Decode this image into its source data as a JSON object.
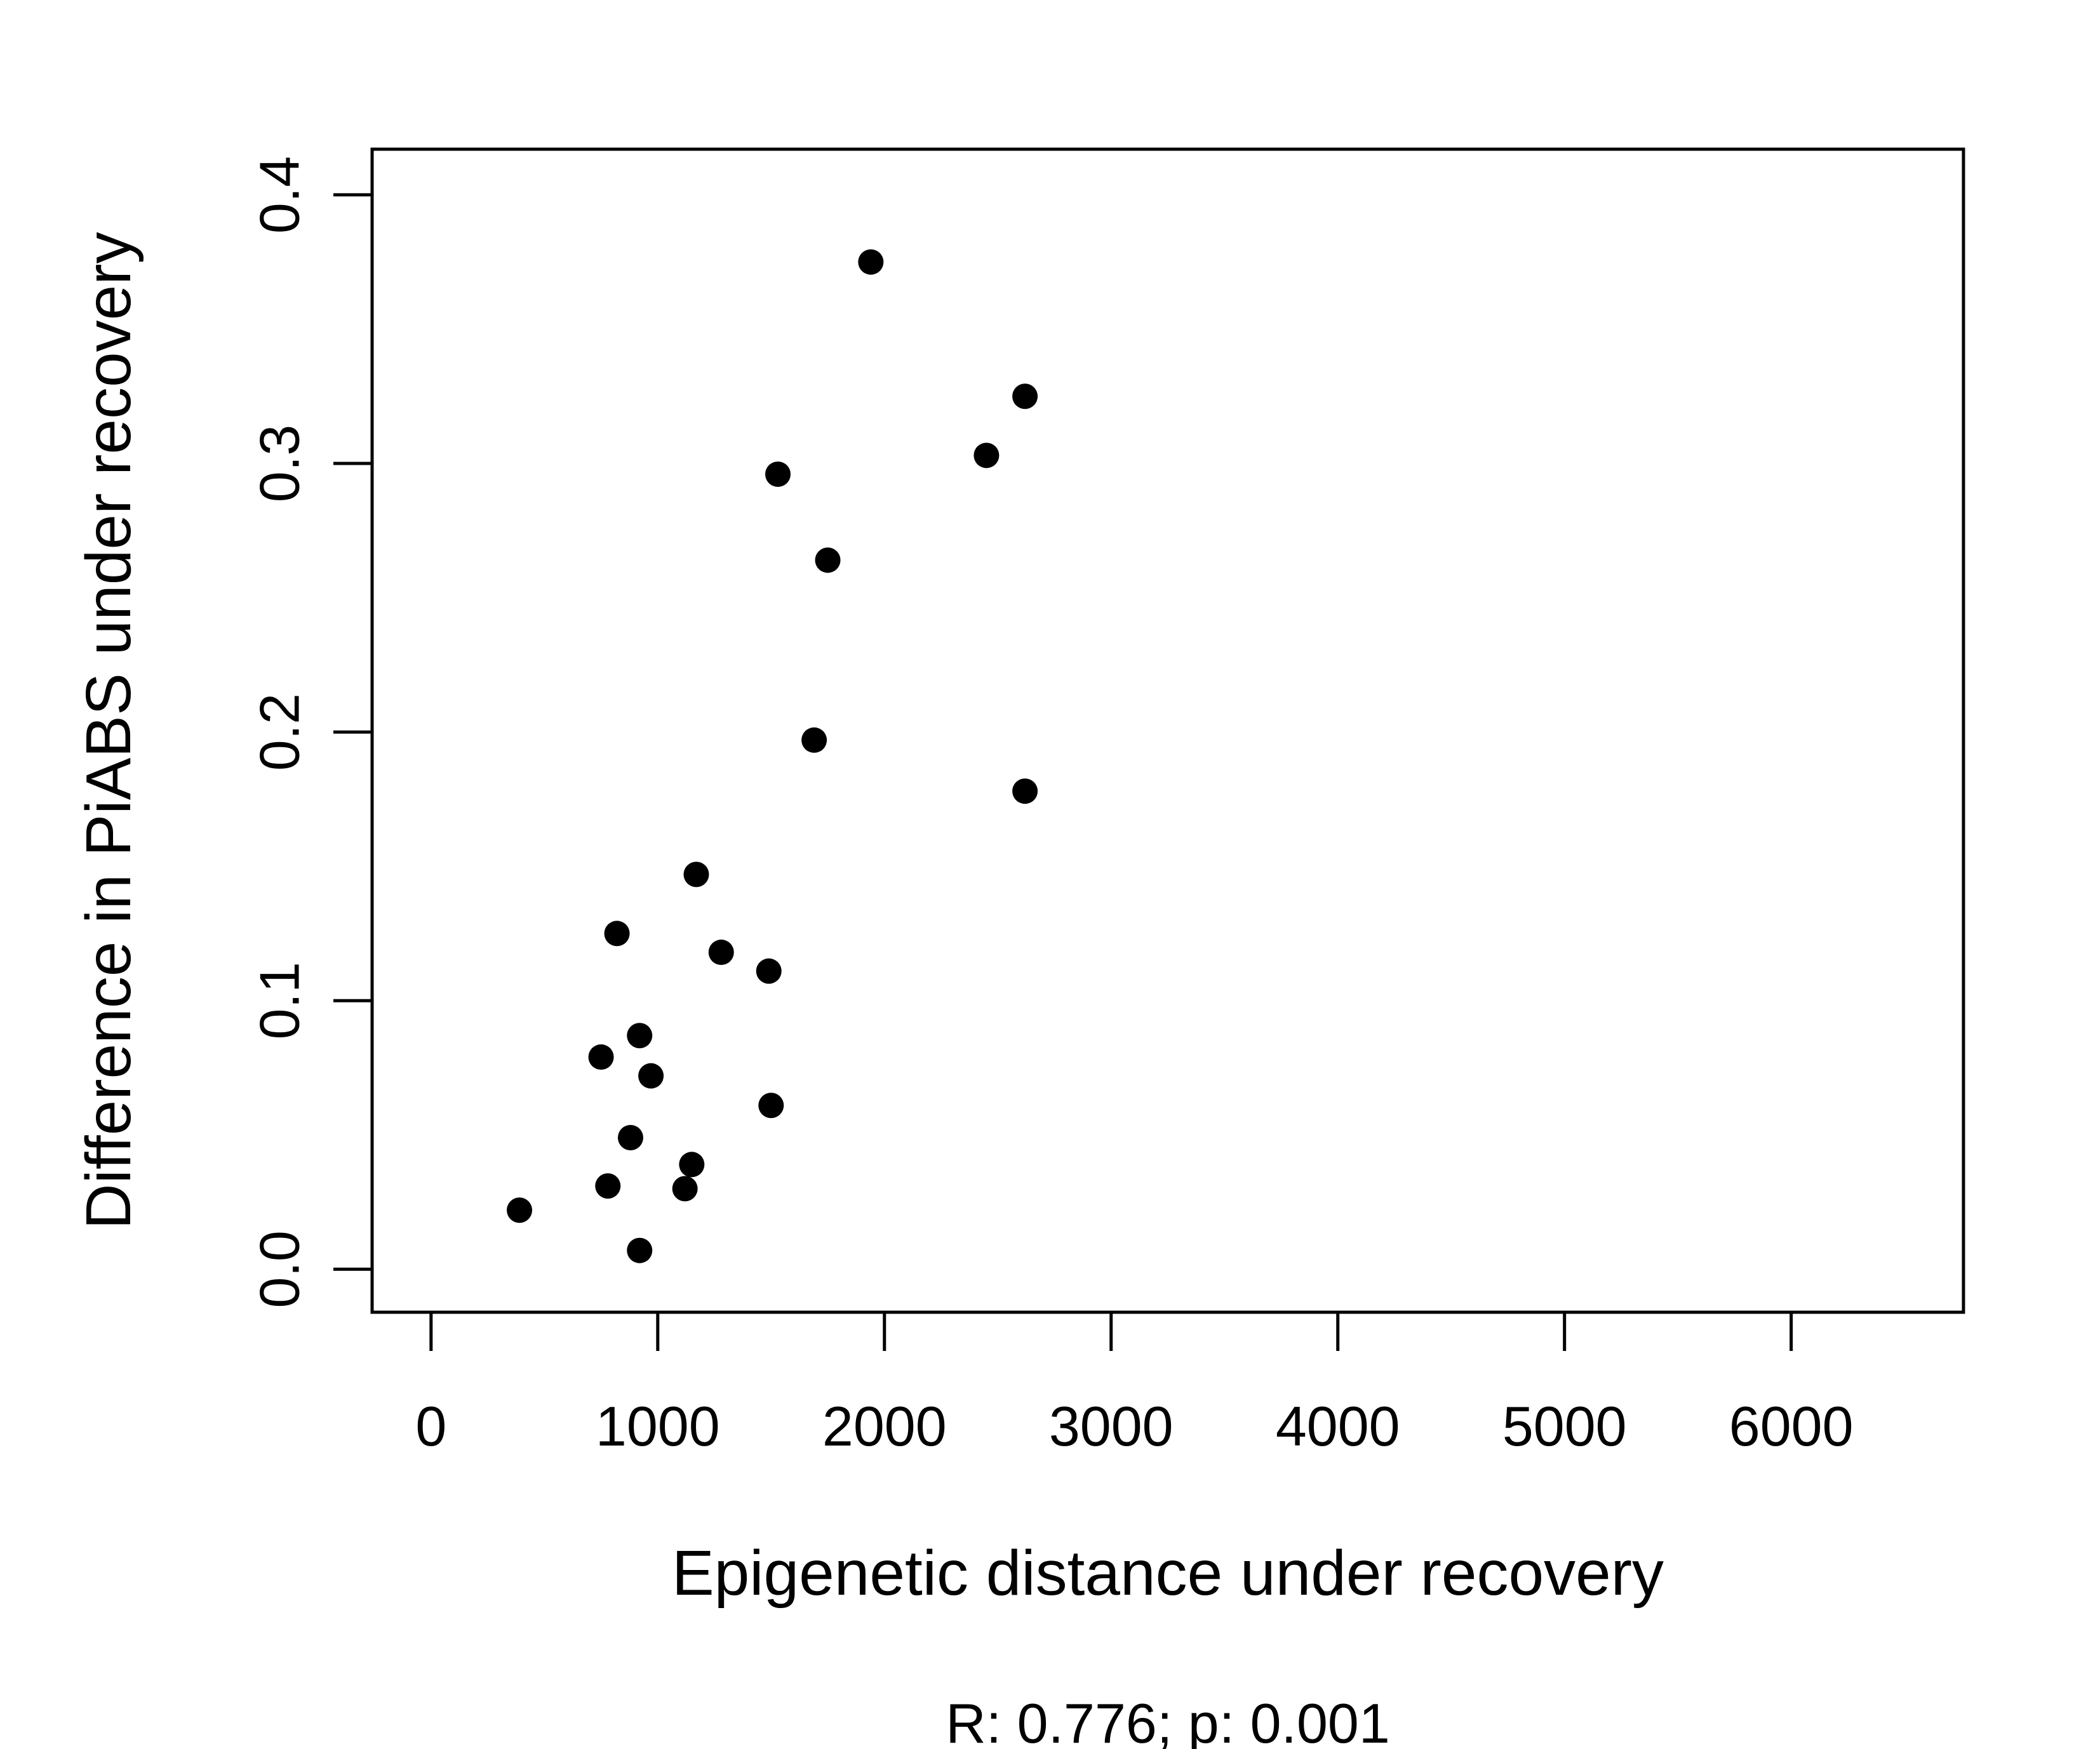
{
  "chart_data": {
    "type": "scatter",
    "title": "",
    "xlabel": "Epigenetic distance under recovery",
    "ylabel": "Difference in PiABS under recovery",
    "subtitle": "R: 0.776; p: 0.001",
    "xlim": [
      -260,
      6760
    ],
    "ylim": [
      -0.016,
      0.417
    ],
    "x_ticks": [
      0,
      1000,
      2000,
      3000,
      4000,
      5000,
      6000
    ],
    "x_tick_labels": [
      "0",
      "1000",
      "2000",
      "3000",
      "4000",
      "5000",
      "6000"
    ],
    "y_ticks": [
      0.0,
      0.1,
      0.2,
      0.3,
      0.4
    ],
    "y_tick_labels": [
      "0.0",
      "0.1",
      "0.2",
      "0.3",
      "0.4"
    ],
    "grid": false,
    "legend": "none",
    "point_color": "#000000",
    "series": [
      {
        "name": "",
        "points": [
          {
            "x": 1940,
            "y": 0.375
          },
          {
            "x": 2620,
            "y": 0.325
          },
          {
            "x": 2450,
            "y": 0.303
          },
          {
            "x": 1530,
            "y": 0.296
          },
          {
            "x": 1750,
            "y": 0.264
          },
          {
            "x": 1690,
            "y": 0.197
          },
          {
            "x": 2620,
            "y": 0.178
          },
          {
            "x": 1170,
            "y": 0.147
          },
          {
            "x": 820,
            "y": 0.125
          },
          {
            "x": 1280,
            "y": 0.118
          },
          {
            "x": 1490,
            "y": 0.111
          },
          {
            "x": 920,
            "y": 0.087
          },
          {
            "x": 750,
            "y": 0.079
          },
          {
            "x": 970,
            "y": 0.072
          },
          {
            "x": 1500,
            "y": 0.061
          },
          {
            "x": 880,
            "y": 0.049
          },
          {
            "x": 1150,
            "y": 0.039
          },
          {
            "x": 780,
            "y": 0.031
          },
          {
            "x": 1120,
            "y": 0.03
          },
          {
            "x": 390,
            "y": 0.022
          },
          {
            "x": 920,
            "y": 0.007
          }
        ]
      }
    ]
  }
}
